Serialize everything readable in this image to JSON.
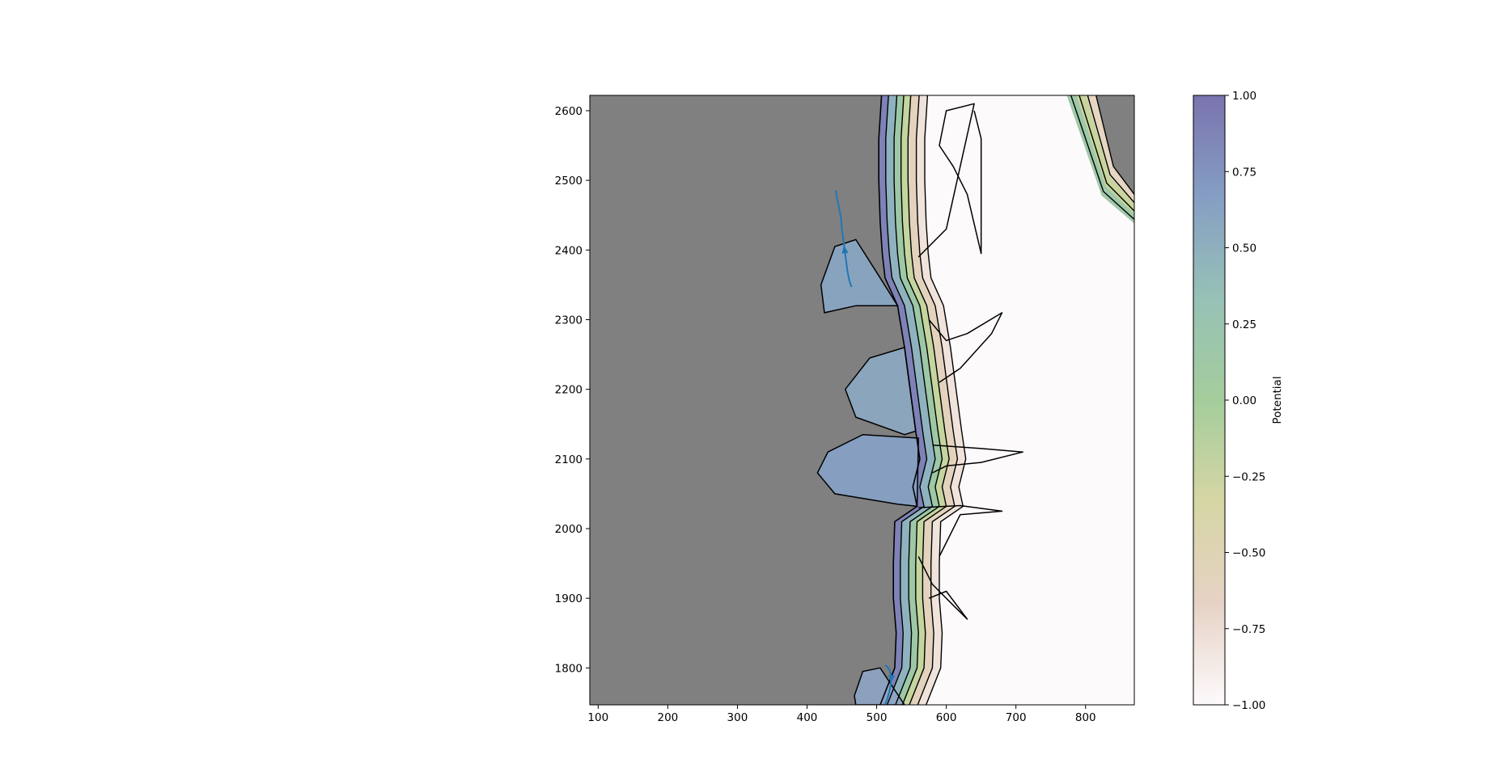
{
  "chart_data": {
    "type": "heatmap",
    "subtype": "contourf with contour lines, masked region and streamline trajectories",
    "title": "",
    "xlabel": "",
    "ylabel": "",
    "xlim": [
      88,
      870
    ],
    "ylim": [
      1747,
      2622
    ],
    "x_ticks": [
      100,
      200,
      300,
      400,
      500,
      600,
      700,
      800
    ],
    "y_ticks": [
      1800,
      1900,
      2000,
      2100,
      2200,
      2300,
      2400,
      2500,
      2600
    ],
    "grid": false,
    "mask_color": "#808080",
    "colormap": [
      "#fdfafc",
      "#e6d2c5",
      "#d6d6a4",
      "#a4cd9c",
      "#97c1b6",
      "#859ec4",
      "#7a74ae"
    ],
    "colorbar": {
      "label": "Potential",
      "range": [
        -1.0,
        1.0
      ],
      "ticks": [
        1.0,
        0.75,
        0.5,
        0.25,
        0.0,
        -0.25,
        -0.5,
        -0.75,
        -1.0
      ],
      "tick_labels": [
        "1.00",
        "0.75",
        "0.50",
        "0.25",
        "0.00",
        "−0.25",
        "−0.50",
        "−0.75",
        "−1.00"
      ]
    },
    "contour_levels": [
      -0.75,
      -0.5,
      -0.25,
      0.0,
      0.25,
      0.5,
      0.75
    ],
    "front_boundary": [
      [
        507,
        2622
      ],
      [
        503,
        2560
      ],
      [
        503,
        2500
      ],
      [
        505,
        2440
      ],
      [
        508,
        2395
      ],
      [
        512,
        2360
      ],
      [
        530,
        2320
      ],
      [
        540,
        2260
      ],
      [
        548,
        2200
      ],
      [
        556,
        2140
      ],
      [
        562,
        2100
      ],
      [
        552,
        2060
      ],
      [
        558,
        2032
      ],
      [
        526,
        2010
      ],
      [
        524,
        1950
      ],
      [
        524,
        1900
      ],
      [
        528,
        1850
      ],
      [
        526,
        1800
      ],
      [
        505,
        1747
      ]
    ],
    "bands": [
      {
        "level": 0.75,
        "color": "#7e82b6",
        "offset": 10
      },
      {
        "level": 0.5,
        "color": "#8fb3be",
        "offset": 22
      },
      {
        "level": 0.25,
        "color": "#9cc8a6",
        "offset": 32
      },
      {
        "level": 0.0,
        "color": "#c5d59e",
        "offset": 42
      },
      {
        "level": -0.5,
        "color": "#e3d3bd",
        "offset": 54
      },
      {
        "level": -0.75,
        "color": "#efe3dc",
        "offset": 66
      }
    ],
    "lobes": [
      {
        "name": "lobe-2350",
        "color": "#88a6c4",
        "points": [
          [
            505,
            2360
          ],
          [
            470,
            2415
          ],
          [
            440,
            2405
          ],
          [
            420,
            2350
          ],
          [
            425,
            2310
          ],
          [
            470,
            2320
          ],
          [
            530,
            2320
          ]
        ]
      },
      {
        "name": "lobe-2200",
        "color": "#8ca9c2",
        "points": [
          [
            540,
            2260
          ],
          [
            490,
            2245
          ],
          [
            455,
            2200
          ],
          [
            470,
            2160
          ],
          [
            540,
            2135
          ],
          [
            556,
            2140
          ]
        ]
      },
      {
        "name": "lobe-2100",
        "color": "#86a2c6",
        "points": [
          [
            560,
            2130
          ],
          [
            480,
            2135
          ],
          [
            430,
            2110
          ],
          [
            415,
            2080
          ],
          [
            440,
            2050
          ],
          [
            530,
            2035
          ],
          [
            558,
            2032
          ]
        ]
      },
      {
        "name": "lobe-1760",
        "color": "#8da4c4",
        "points": [
          [
            505,
            1800
          ],
          [
            480,
            1795
          ],
          [
            468,
            1760
          ],
          [
            470,
            1747
          ],
          [
            540,
            1747
          ]
        ]
      }
    ],
    "top_right_corner": {
      "points": [
        [
          815,
          2622
        ],
        [
          870,
          2622
        ],
        [
          870,
          2480
        ],
        [
          840,
          2520
        ]
      ],
      "bands": [
        "#9fc9a9",
        "#c8d59d",
        "#e6d6c2"
      ]
    },
    "obstacle_outlines": [
      [
        [
          560,
          2390
        ],
        [
          600,
          2430
        ],
        [
          640,
          2610
        ],
        [
          600,
          2600
        ],
        [
          590,
          2550
        ],
        [
          610,
          2520
        ],
        [
          630,
          2480
        ],
        [
          650,
          2395
        ],
        [
          650,
          2560
        ],
        [
          640,
          2600
        ]
      ],
      [
        [
          575,
          2300
        ],
        [
          600,
          2270
        ],
        [
          630,
          2280
        ],
        [
          680,
          2310
        ],
        [
          665,
          2280
        ],
        [
          620,
          2230
        ],
        [
          590,
          2210
        ]
      ],
      [
        [
          580,
          2120
        ],
        [
          650,
          2115
        ],
        [
          710,
          2110
        ],
        [
          650,
          2095
        ],
        [
          600,
          2090
        ],
        [
          580,
          2080
        ]
      ],
      [
        [
          560,
          2030
        ],
        [
          620,
          2033
        ],
        [
          680,
          2025
        ],
        [
          620,
          2020
        ],
        [
          590,
          1960
        ]
      ],
      [
        [
          560,
          1960
        ],
        [
          580,
          1920
        ],
        [
          610,
          1890
        ],
        [
          630,
          1870
        ],
        [
          600,
          1910
        ],
        [
          575,
          1900
        ]
      ]
    ],
    "series": [
      {
        "name": "",
        "color": "#1f77b4",
        "x": [
          441,
          443,
          446,
          449,
          450,
          452,
          454,
          456,
          458,
          460,
          462,
          464
        ],
        "y": [
          2486,
          2475,
          2460,
          2445,
          2430,
          2415,
          2400,
          2385,
          2370,
          2360,
          2352,
          2347
        ]
      },
      {
        "name": "",
        "color": "#1f77b4",
        "x": [
          512,
          515,
          518,
          520,
          521,
          520,
          518,
          515,
          512
        ],
        "y": [
          1747,
          1755,
          1765,
          1775,
          1785,
          1792,
          1798,
          1802,
          1804
        ]
      }
    ]
  }
}
